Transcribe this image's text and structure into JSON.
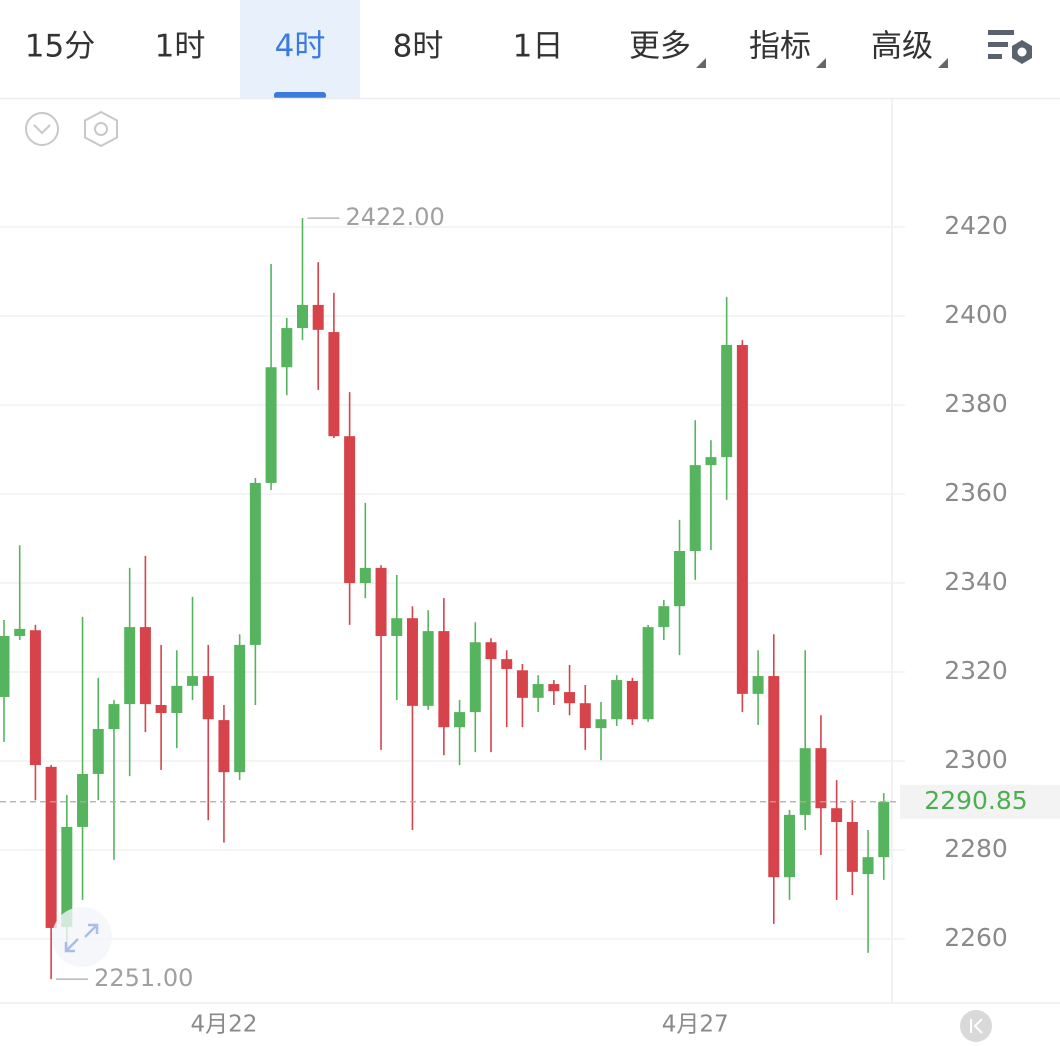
{
  "tabs": [
    {
      "label": "15分"
    },
    {
      "label": "1时"
    },
    {
      "label": "4时",
      "active": true
    },
    {
      "label": "8时"
    },
    {
      "label": "1日"
    },
    {
      "label": "更多",
      "dropdown": true
    },
    {
      "label": "指标",
      "dropdown": true
    },
    {
      "label": "高级",
      "dropdown": true
    }
  ],
  "chart_data": {
    "type": "candlestick",
    "categories": [
      null,
      null,
      null,
      null,
      null,
      null,
      null,
      null,
      null,
      null,
      null,
      null,
      null,
      null,
      "4月22",
      null,
      null,
      null,
      null,
      null,
      null,
      null,
      null,
      null,
      null,
      null,
      null,
      null,
      null,
      null,
      null,
      null,
      null,
      null,
      null,
      null,
      null,
      null,
      null,
      null,
      null,
      null,
      null,
      null,
      "4月27",
      null,
      null,
      null,
      null,
      null,
      null,
      null,
      null,
      null,
      null,
      null,
      null
    ],
    "open": [
      2314.4,
      2328.1,
      2329.4,
      2298.7,
      2262.7,
      2285.2,
      2297.1,
      2307.2,
      2312.8,
      2330.1,
      2312.6,
      2310.8,
      2316.9,
      2319.1,
      2309.2,
      2297.5,
      2326.1,
      2362.5,
      2388.5,
      2397.3,
      2402.5,
      2396.4,
      2373.0,
      2340.0,
      2343.4,
      2328.1,
      2332.1,
      2312.4,
      2329.2,
      2307.6,
      2311.0,
      2326.7,
      2322.9,
      2320.4,
      2314.2,
      2317.3,
      2315.5,
      2313.0,
      2307.4,
      2309.4,
      2318.0,
      2309.4,
      2330.1,
      2334.8,
      2347.2,
      2366.5,
      2368.3,
      2393.5,
      2315.1,
      2319.1,
      2273.9,
      2287.9,
      2302.9,
      2289.4,
      2286.3,
      2274.6,
      2278.4
    ],
    "high": [
      2331.7,
      2348.5,
      2330.6,
      2299.1,
      2292.4,
      2332.4,
      2318.7,
      2313.7,
      2343.4,
      2346.1,
      2326.1,
      2324.9,
      2336.9,
      2326.1,
      2312.6,
      2328.5,
      2363.6,
      2411.7,
      2399.6,
      2422.0,
      2412.1,
      2405.2,
      2382.9,
      2358.0,
      2344.0,
      2341.8,
      2334.8,
      2333.9,
      2336.6,
      2313.7,
      2331.2,
      2327.6,
      2324.9,
      2321.8,
      2319.3,
      2318.2,
      2321.6,
      2317.1,
      2313.3,
      2319.3,
      2318.7,
      2330.6,
      2336.2,
      2354.2,
      2376.6,
      2372.1,
      2404.3,
      2394.6,
      2324.9,
      2328.5,
      2289.0,
      2324.9,
      2310.3,
      2295.7,
      2291.2,
      2284.5,
      2292.8
    ],
    "low": [
      2304.3,
      2327.2,
      2291.2,
      2251.0,
      2257.5,
      2268.8,
      2291.2,
      2277.8,
      2296.6,
      2306.5,
      2298.0,
      2302.9,
      2313.7,
      2286.7,
      2281.7,
      2295.7,
      2312.6,
      2360.9,
      2382.2,
      2394.6,
      2383.4,
      2372.6,
      2330.6,
      2336.6,
      2302.5,
      2313.7,
      2284.5,
      2311.5,
      2301.3,
      2299.1,
      2302.0,
      2302.0,
      2307.6,
      2307.6,
      2311.0,
      2312.6,
      2310.3,
      2302.5,
      2300.2,
      2307.9,
      2308.1,
      2308.8,
      2327.2,
      2323.8,
      2340.7,
      2347.4,
      2358.7,
      2311.0,
      2308.1,
      2263.4,
      2268.8,
      2284.5,
      2278.9,
      2268.8,
      2269.9,
      2256.9,
      2273.3
    ],
    "close": [
      2328.1,
      2329.7,
      2299.1,
      2262.5,
      2285.2,
      2297.1,
      2307.2,
      2312.8,
      2330.1,
      2312.8,
      2310.8,
      2316.9,
      2319.1,
      2309.4,
      2297.5,
      2326.1,
      2362.5,
      2388.5,
      2397.3,
      2402.5,
      2396.9,
      2373.0,
      2340.0,
      2343.4,
      2328.1,
      2332.1,
      2312.4,
      2329.2,
      2307.6,
      2311.0,
      2326.7,
      2322.9,
      2320.7,
      2314.2,
      2317.3,
      2315.7,
      2313.0,
      2307.4,
      2309.4,
      2318.2,
      2309.4,
      2330.1,
      2334.8,
      2347.2,
      2366.5,
      2368.3,
      2393.5,
      2315.1,
      2319.1,
      2273.9,
      2287.9,
      2302.9,
      2289.4,
      2286.3,
      2275.1,
      2278.4,
      2290.85
    ],
    "up_color": "#56b45e",
    "down_color": "#d6434b",
    "ylim": [
      2246,
      2449
    ],
    "yticks": [
      2260,
      2280,
      2300,
      2320,
      2340,
      2360,
      2380,
      2400,
      2420
    ],
    "grid": true,
    "max_label": {
      "value": 2422,
      "label": "2422.00"
    },
    "min_label": {
      "value": 2251,
      "label": "2251.00"
    },
    "last_price": 2290.85
  }
}
